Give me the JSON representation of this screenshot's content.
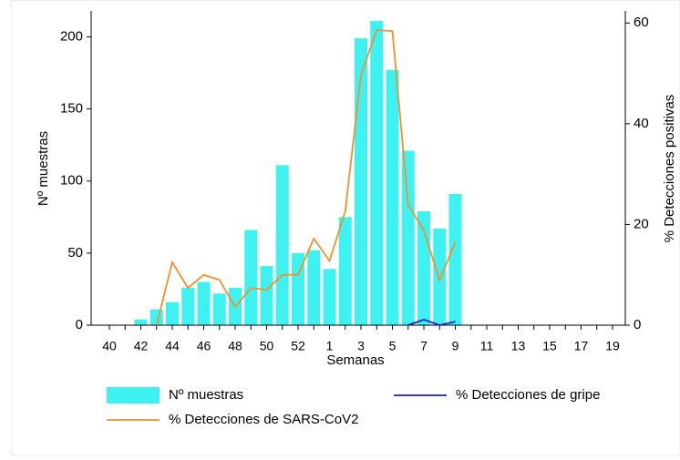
{
  "chart_data": {
    "type": "bar",
    "categories": [
      "40",
      null,
      "42",
      null,
      "44",
      null,
      "46",
      null,
      "48",
      null,
      "50",
      null,
      "52",
      null,
      "1",
      null,
      "3",
      null,
      "5",
      null,
      "7",
      null,
      "9",
      null,
      "11",
      null,
      "13",
      null,
      "15",
      null,
      "17",
      null,
      "19"
    ],
    "xlabel": "Semanas",
    "ylabel": "Nº muestras",
    "y2label": "% Detecciones positivas",
    "ylim": [
      0,
      218
    ],
    "yticks": [
      0,
      50,
      100,
      150,
      200
    ],
    "y2lim": [
      0,
      62.4
    ],
    "y2ticks": [
      0,
      20,
      40,
      60
    ],
    "series": [
      {
        "name": "Nº muestras",
        "type": "bar",
        "color": "#3ff2f2",
        "values": [
          null,
          null,
          4,
          11,
          16,
          26,
          30,
          22,
          26,
          66,
          41,
          111,
          50,
          52,
          39,
          75,
          199,
          211,
          177,
          121,
          79,
          67,
          91,
          null,
          null,
          null,
          null,
          null,
          null,
          null,
          null,
          null,
          null
        ]
      },
      {
        "name": "% Detecciones de gripe",
        "type": "line",
        "axis": "y2",
        "color": "#1c1cc8",
        "values": [
          null,
          null,
          null,
          null,
          null,
          null,
          null,
          null,
          null,
          null,
          null,
          null,
          null,
          null,
          null,
          null,
          null,
          null,
          null,
          0,
          1.1,
          0,
          0.7,
          null,
          null,
          null,
          null,
          null,
          null,
          null,
          null,
          null,
          null
        ]
      },
      {
        "name": "% Detecciones de SARS-CoV2",
        "type": "line",
        "axis": "y2",
        "color": "#f39028",
        "values": [
          null,
          null,
          null,
          0,
          12.5,
          7.4,
          10,
          9,
          3.6,
          7.4,
          7,
          10,
          10,
          17.2,
          12.8,
          22.6,
          49.7,
          58.6,
          58.4,
          23.9,
          18.8,
          8.9,
          16.5,
          null,
          null,
          null,
          null,
          null,
          null,
          null,
          null,
          null,
          null
        ]
      }
    ]
  }
}
